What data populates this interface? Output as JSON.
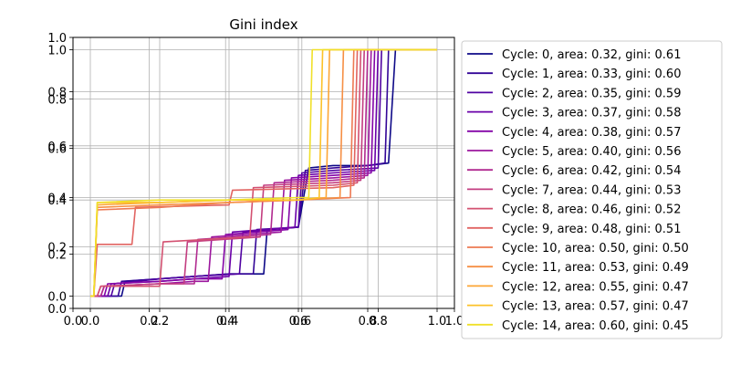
{
  "chart_data": {
    "type": "line",
    "title": "Gini index",
    "xlabel": "",
    "ylabel": "",
    "grid": true,
    "legend_position": "outside-right",
    "axes": [
      {
        "name": "outer",
        "xlim": [
          0.0,
          1.0
        ],
        "ylim": [
          0.0,
          1.0
        ],
        "xticks": [
          "0.0",
          "0.2",
          "0.4",
          "0.6",
          "0.8",
          "1.0"
        ],
        "yticks": [
          "0.0",
          "0.2",
          "0.4",
          "0.6",
          "0.8",
          "1.0"
        ]
      },
      {
        "name": "inner",
        "xlim": [
          -0.05,
          1.05
        ],
        "ylim": [
          -0.05,
          1.05
        ],
        "xticks": [
          "0.0",
          "0.2",
          "0.4",
          "0.6",
          "0.8",
          "1.0"
        ],
        "yticks": [
          "0.0",
          "0.2",
          "0.4",
          "0.6",
          "0.8",
          "1.0"
        ]
      }
    ],
    "series": [
      {
        "name": "Cycle: 0, area: 0.32, gini: 0.61",
        "color": "#0d0887",
        "x": [
          0.0,
          0.09,
          0.1,
          0.2,
          0.3,
          0.4,
          0.5,
          0.51,
          0.6,
          0.63,
          0.7,
          0.8,
          0.86,
          0.88,
          0.9,
          1.0
        ],
        "y": [
          0.0,
          0.0,
          0.06,
          0.07,
          0.08,
          0.09,
          0.09,
          0.27,
          0.28,
          0.52,
          0.53,
          0.53,
          0.54,
          1.0,
          1.0,
          1.0
        ]
      },
      {
        "name": "Cycle: 1, area: 0.33, gini: 0.60",
        "color": "#330597",
        "x": [
          0.0,
          0.08,
          0.09,
          0.2,
          0.3,
          0.4,
          0.47,
          0.48,
          0.6,
          0.62,
          0.7,
          0.8,
          0.85,
          0.86,
          1.0
        ],
        "y": [
          0.0,
          0.0,
          0.06,
          0.07,
          0.08,
          0.09,
          0.09,
          0.27,
          0.28,
          0.51,
          0.52,
          0.53,
          0.54,
          1.0,
          1.0
        ]
      },
      {
        "name": "Cycle: 2, area: 0.35, gini: 0.59",
        "color": "#5002a2",
        "x": [
          0.0,
          0.06,
          0.07,
          0.2,
          0.3,
          0.43,
          0.44,
          0.6,
          0.61,
          0.7,
          0.83,
          0.84,
          1.0
        ],
        "y": [
          0.0,
          0.0,
          0.05,
          0.07,
          0.08,
          0.09,
          0.26,
          0.28,
          0.5,
          0.51,
          0.52,
          1.0,
          1.0
        ]
      },
      {
        "name": "Cycle: 3, area: 0.37, gini: 0.58",
        "color": "#6a00a8",
        "x": [
          0.0,
          0.05,
          0.06,
          0.2,
          0.3,
          0.4,
          0.41,
          0.59,
          0.6,
          0.7,
          0.82,
          0.83,
          1.0
        ],
        "y": [
          0.0,
          0.0,
          0.05,
          0.06,
          0.07,
          0.08,
          0.26,
          0.28,
          0.49,
          0.5,
          0.51,
          1.0,
          1.0
        ]
      },
      {
        "name": "Cycle: 4, area: 0.38, gini: 0.57",
        "color": "#8405a7",
        "x": [
          0.0,
          0.04,
          0.05,
          0.2,
          0.3,
          0.38,
          0.39,
          0.57,
          0.58,
          0.7,
          0.81,
          0.82,
          1.0
        ],
        "y": [
          0.0,
          0.0,
          0.05,
          0.06,
          0.07,
          0.07,
          0.25,
          0.27,
          0.48,
          0.49,
          0.5,
          1.0,
          1.0
        ]
      },
      {
        "name": "Cycle: 5, area: 0.40, gini: 0.56",
        "color": "#9c179e",
        "x": [
          0.0,
          0.03,
          0.04,
          0.2,
          0.3,
          0.34,
          0.35,
          0.55,
          0.56,
          0.7,
          0.8,
          0.81,
          1.0
        ],
        "y": [
          0.0,
          0.0,
          0.04,
          0.05,
          0.06,
          0.06,
          0.24,
          0.26,
          0.47,
          0.48,
          0.49,
          1.0,
          1.0
        ]
      },
      {
        "name": "Cycle: 6, area: 0.42, gini: 0.54",
        "color": "#b12a90",
        "x": [
          0.0,
          0.03,
          0.04,
          0.2,
          0.3,
          0.31,
          0.52,
          0.53,
          0.7,
          0.79,
          0.8,
          1.0
        ],
        "y": [
          0.0,
          0.0,
          0.04,
          0.05,
          0.05,
          0.23,
          0.25,
          0.46,
          0.47,
          0.48,
          1.0,
          1.0
        ]
      },
      {
        "name": "Cycle: 7, area: 0.44, gini: 0.53",
        "color": "#c33d80",
        "x": [
          0.0,
          0.02,
          0.03,
          0.2,
          0.27,
          0.28,
          0.49,
          0.5,
          0.7,
          0.78,
          0.79,
          1.0
        ],
        "y": [
          0.0,
          0.0,
          0.04,
          0.05,
          0.05,
          0.22,
          0.24,
          0.45,
          0.46,
          0.47,
          1.0,
          1.0
        ]
      },
      {
        "name": "Cycle: 8, area: 0.46, gini: 0.52",
        "color": "#d35171",
        "x": [
          0.0,
          0.02,
          0.03,
          0.2,
          0.21,
          0.46,
          0.47,
          0.7,
          0.77,
          0.78,
          1.0
        ],
        "y": [
          0.0,
          0.0,
          0.04,
          0.04,
          0.22,
          0.24,
          0.44,
          0.45,
          0.46,
          1.0,
          1.0
        ]
      },
      {
        "name": "Cycle: 9, area: 0.48, gini: 0.51",
        "color": "#e16462",
        "x": [
          0.0,
          0.01,
          0.02,
          0.12,
          0.13,
          0.4,
          0.41,
          0.7,
          0.76,
          0.77,
          1.0
        ],
        "y": [
          0.0,
          0.0,
          0.21,
          0.21,
          0.36,
          0.37,
          0.43,
          0.44,
          0.45,
          1.0,
          1.0
        ]
      },
      {
        "name": "Cycle: 10, area: 0.50, gini: 0.50",
        "color": "#ed7953",
        "x": [
          0.0,
          0.01,
          0.02,
          0.2,
          0.3,
          0.4,
          0.6,
          0.75,
          0.76,
          1.0
        ],
        "y": [
          0.0,
          0.0,
          0.35,
          0.36,
          0.37,
          0.38,
          0.39,
          0.4,
          1.0,
          1.0
        ]
      },
      {
        "name": "Cycle: 11, area: 0.53, gini: 0.49",
        "color": "#f68f44",
        "x": [
          0.0,
          0.01,
          0.02,
          0.2,
          0.4,
          0.6,
          0.72,
          0.73,
          1.0
        ],
        "y": [
          0.0,
          0.0,
          0.36,
          0.37,
          0.38,
          0.39,
          0.4,
          1.0,
          1.0
        ]
      },
      {
        "name": "Cycle: 12, area: 0.55, gini: 0.47",
        "color": "#fca636",
        "x": [
          0.0,
          0.01,
          0.02,
          0.2,
          0.4,
          0.6,
          0.68,
          0.69,
          1.0
        ],
        "y": [
          0.0,
          0.0,
          0.37,
          0.38,
          0.39,
          0.39,
          0.4,
          1.0,
          1.0
        ]
      },
      {
        "name": "Cycle: 13, area: 0.57, gini: 0.47",
        "color": "#fcc229",
        "x": [
          0.0,
          0.01,
          0.02,
          0.2,
          0.4,
          0.6,
          0.66,
          0.67,
          1.0
        ],
        "y": [
          0.0,
          0.0,
          0.38,
          0.38,
          0.39,
          0.39,
          0.4,
          1.0,
          1.0
        ]
      },
      {
        "name": "Cycle: 14, area: 0.60, gini: 0.45",
        "color": "#f0e029",
        "x": [
          0.0,
          0.01,
          0.02,
          0.2,
          0.4,
          0.6,
          0.63,
          0.64,
          1.0
        ],
        "y": [
          0.0,
          0.0,
          0.38,
          0.39,
          0.39,
          0.4,
          0.4,
          1.0,
          1.0
        ]
      }
    ]
  }
}
